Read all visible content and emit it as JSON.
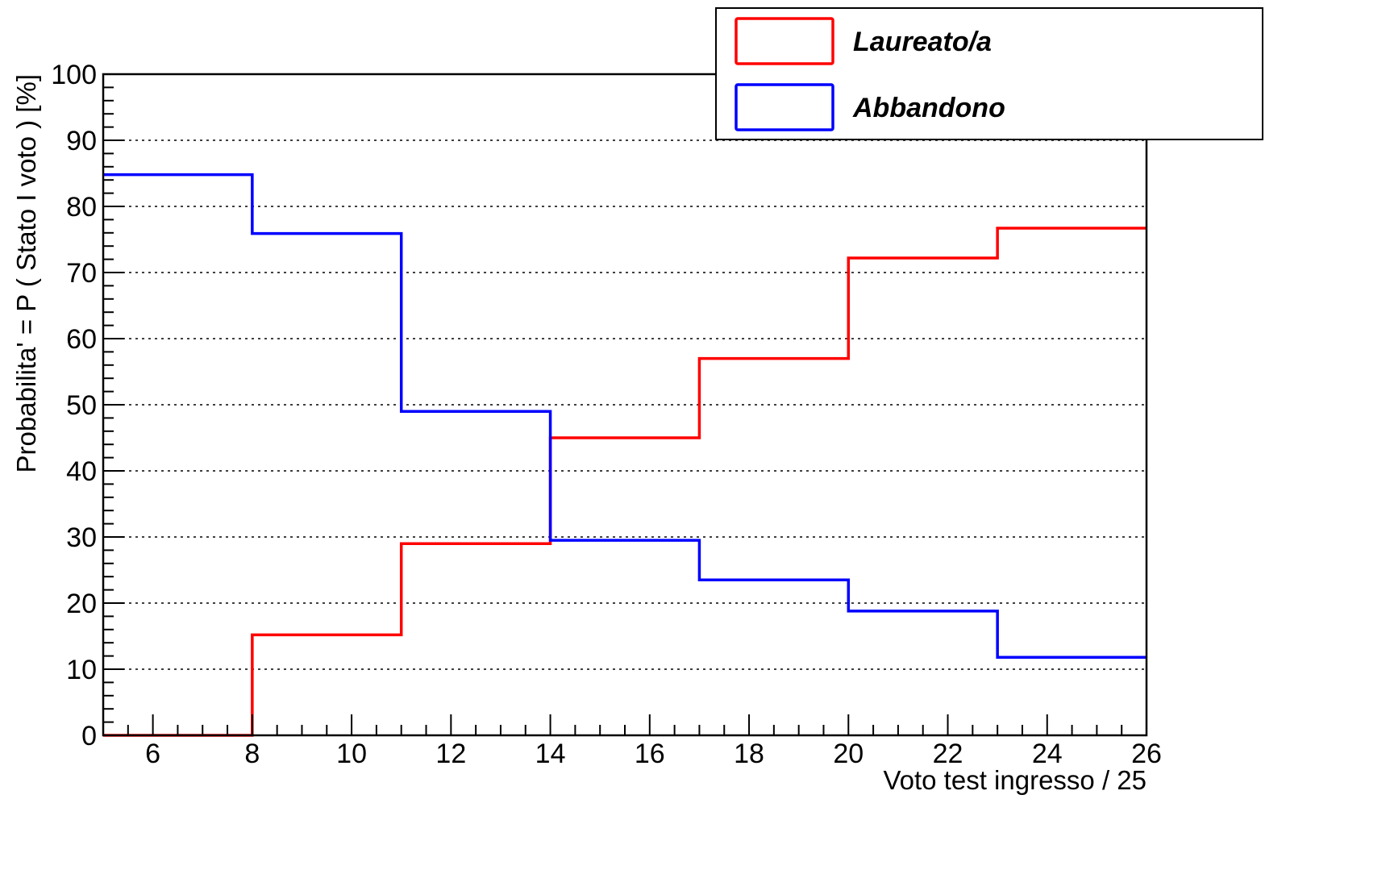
{
  "chart_data": {
    "type": "line",
    "step": true,
    "title": "",
    "xlabel": "Voto test ingresso / 25",
    "ylabel": "Probabilita' =  P ( Stato I voto ) [%]",
    "xlim": [
      5,
      26
    ],
    "ylim": [
      0,
      100
    ],
    "xticks": [
      6,
      8,
      10,
      12,
      14,
      16,
      18,
      20,
      22,
      24,
      26
    ],
    "yticks": [
      0,
      10,
      20,
      30,
      40,
      50,
      60,
      70,
      80,
      90,
      100
    ],
    "grid": "horizontal-dotted",
    "legend_position": "top-right",
    "bin_edges": [
      5,
      8,
      11,
      14,
      17,
      20,
      23,
      26
    ],
    "series": [
      {
        "name": "Laureato/a",
        "color": "#ff0000",
        "values": [
          0,
          15.2,
          29,
          45,
          57,
          72.2,
          76.7
        ]
      },
      {
        "name": "Abbandono",
        "color": "#0000ff",
        "values": [
          84.8,
          75.9,
          49,
          29.5,
          23.5,
          18.8,
          11.8
        ]
      }
    ]
  }
}
